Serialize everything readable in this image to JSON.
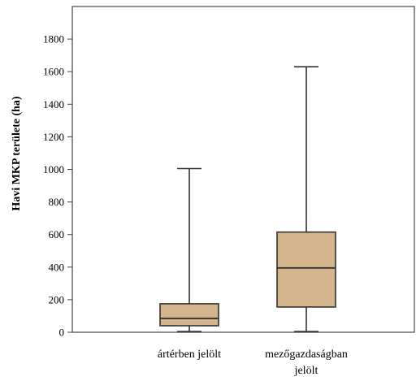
{
  "chart_data": {
    "type": "boxplot",
    "title": "",
    "xlabel": "",
    "ylabel": "Havi MKP területe (ha)",
    "ylim": [
      0,
      2000
    ],
    "yticks": [
      0,
      200,
      400,
      600,
      800,
      1000,
      1200,
      1400,
      1600,
      1800
    ],
    "grid": false,
    "legend": "none",
    "box_color": "#d4b48c",
    "line_color": "#333333",
    "categories": [
      {
        "label_lines": [
          "ártérben jelölt"
        ],
        "min": 5,
        "q1": 40,
        "median": 85,
        "q3": 175,
        "max": 1005
      },
      {
        "label_lines": [
          "mezőgazdaságban",
          "jelölt"
        ],
        "min": 5,
        "q1": 155,
        "median": 395,
        "q3": 615,
        "max": 1630
      }
    ]
  }
}
